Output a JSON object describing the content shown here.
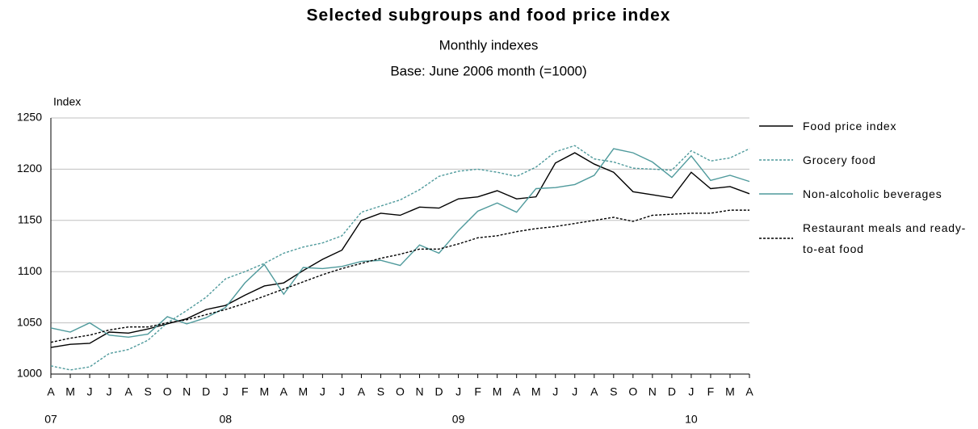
{
  "chart_data": {
    "type": "line",
    "title": "Selected subgroups and food price index",
    "subtitle": "Monthly indexes",
    "note": "Base: June 2006 month (=1000)",
    "y_label": "Index",
    "categories": [
      "A",
      "M",
      "J",
      "J",
      "A",
      "S",
      "O",
      "N",
      "D",
      "J",
      "F",
      "M",
      "A",
      "M",
      "J",
      "J",
      "A",
      "S",
      "O",
      "N",
      "D",
      "J",
      "F",
      "M",
      "A",
      "M",
      "J",
      "J",
      "A",
      "S",
      "O",
      "N",
      "D",
      "J",
      "F",
      "M",
      "A"
    ],
    "year_labels": [
      {
        "value": 0,
        "label": "07"
      },
      {
        "value": 9,
        "label": "08"
      },
      {
        "value": 21,
        "label": "09"
      },
      {
        "value": 33,
        "label": "10"
      }
    ],
    "ylim": [
      1000,
      1250
    ],
    "yticks": [
      1000,
      1050,
      1100,
      1150,
      1200,
      1250
    ],
    "grid": true,
    "legend": "right",
    "series": [
      {
        "name": "Food price index",
        "color": "#000000",
        "style": "solid",
        "values": [
          1026,
          1029,
          1030,
          1041,
          1040,
          1044,
          1049,
          1054,
          1063,
          1067,
          1077,
          1086,
          1089,
          1101,
          1112,
          1121,
          1150,
          1157,
          1155,
          1163,
          1162,
          1171,
          1173,
          1179,
          1171,
          1173,
          1206,
          1216,
          1205,
          1197,
          1178,
          1175,
          1172,
          1197,
          1181,
          1183,
          1176
        ]
      },
      {
        "name": "Grocery food",
        "color": "#4f9a9c",
        "style": "dotted",
        "values": [
          1008,
          1004,
          1007,
          1020,
          1024,
          1033,
          1050,
          1062,
          1075,
          1093,
          1100,
          1108,
          1118,
          1124,
          1128,
          1135,
          1158,
          1164,
          1170,
          1180,
          1193,
          1198,
          1200,
          1197,
          1193,
          1202,
          1217,
          1223,
          1210,
          1207,
          1201,
          1200,
          1199,
          1218,
          1208,
          1211,
          1220
        ]
      },
      {
        "name": "Non-alcoholic beverages",
        "color": "#4f9a9c",
        "style": "solid",
        "values": [
          1045,
          1041,
          1050,
          1038,
          1036,
          1039,
          1056,
          1049,
          1055,
          1065,
          1089,
          1107,
          1078,
          1104,
          1103,
          1105,
          1110,
          1111,
          1106,
          1126,
          1118,
          1140,
          1159,
          1167,
          1158,
          1181,
          1182,
          1185,
          1194,
          1220,
          1216,
          1207,
          1192,
          1213,
          1189,
          1194,
          1188
        ]
      },
      {
        "name": "Restaurant meals and ready-to-eat food",
        "color": "#000000",
        "style": "dotted",
        "values": [
          1031,
          1035,
          1038,
          1043,
          1046,
          1046,
          1050,
          1053,
          1058,
          1063,
          1069,
          1076,
          1083,
          1090,
          1097,
          1103,
          1108,
          1113,
          1117,
          1122,
          1122,
          1127,
          1133,
          1135,
          1139,
          1142,
          1144,
          1147,
          1150,
          1153,
          1149,
          1155,
          1156,
          1157,
          1157,
          1160,
          1160
        ]
      }
    ]
  }
}
